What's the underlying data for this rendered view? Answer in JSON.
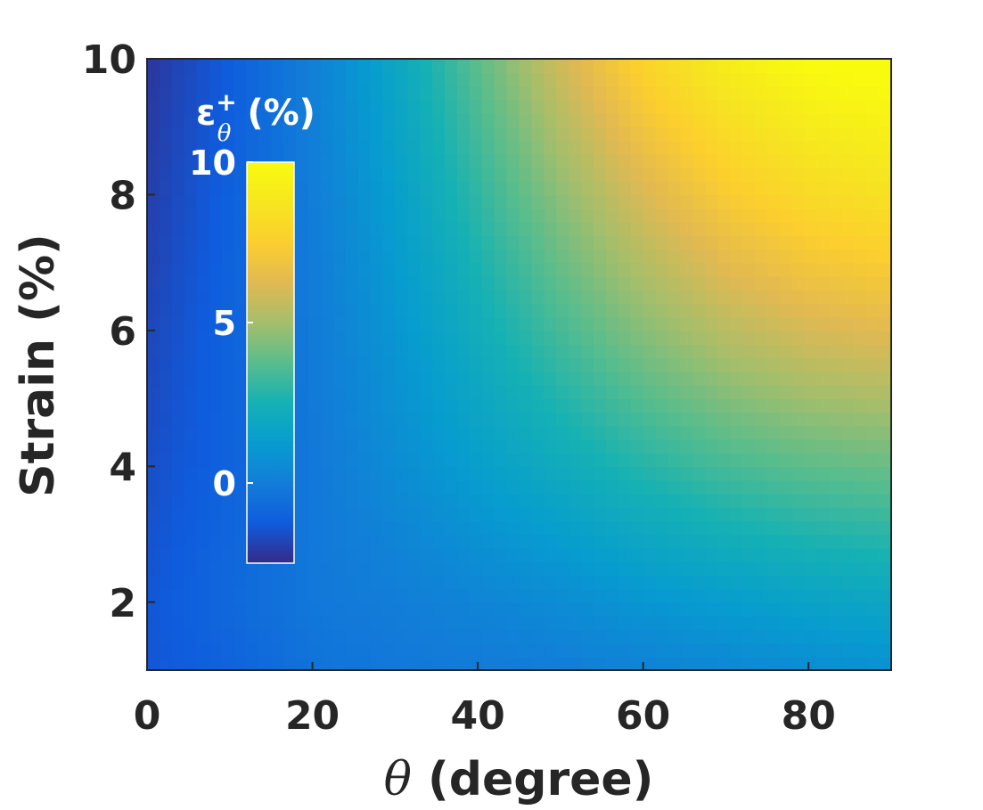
{
  "chart_data": {
    "type": "heatmap",
    "title": "",
    "xlabel": {
      "symbol": "θ",
      "text": " (degree)"
    },
    "ylabel": "Strain (%)",
    "xlim": [
      0,
      90
    ],
    "ylim": [
      1,
      10
    ],
    "xticks": [
      0,
      20,
      40,
      60,
      80
    ],
    "yticks": [
      2,
      4,
      6,
      8,
      10
    ],
    "xtick_labels": [
      "0",
      "20",
      "40",
      "60",
      "80"
    ],
    "ytick_labels": [
      "2",
      "4",
      "6",
      "8",
      "10"
    ],
    "grid": false,
    "surface_samples": {
      "description_of_axes": "rows = strain (%) values, columns = theta (degree) values, cells = epsilon_theta^+ (%)",
      "theta": [
        0,
        10,
        20,
        30,
        40,
        50,
        60,
        70,
        80,
        90
      ],
      "strain": [
        1,
        2,
        4,
        6,
        8,
        10
      ],
      "values": [
        [
          -1.4,
          -1.0,
          -0.4,
          -0.2,
          -0.1,
          0.0,
          0.2,
          0.4,
          0.6,
          0.8
        ],
        [
          -1.4,
          -0.8,
          -0.2,
          0.0,
          0.3,
          0.6,
          1.0,
          1.3,
          1.6,
          1.8
        ],
        [
          -1.6,
          -1.0,
          -0.2,
          0.6,
          1.4,
          2.1,
          2.8,
          3.4,
          3.8,
          4.0
        ],
        [
          -1.8,
          -1.0,
          -0.1,
          1.0,
          2.2,
          3.4,
          4.5,
          5.4,
          6.0,
          6.3
        ],
        [
          -2.0,
          -1.1,
          0.0,
          1.4,
          3.0,
          4.6,
          6.1,
          7.3,
          8.1,
          8.5
        ],
        [
          -2.2,
          -1.2,
          0.1,
          1.8,
          3.8,
          5.9,
          7.8,
          9.2,
          10.0,
          10.3
        ]
      ]
    },
    "colorbar": {
      "title_main": "ε",
      "title_sup": "+",
      "title_sub": "θ",
      "title_unit": " (%)",
      "range": [
        -2.5,
        10
      ],
      "ticks": [
        0,
        5,
        10
      ],
      "tick_labels": [
        "0",
        "5",
        "10"
      ],
      "placement": "inside plot, upper-left"
    },
    "colormap": "parula",
    "colors": {
      "axis_text": "#262626",
      "colorbar_text": "#ffffff"
    }
  }
}
